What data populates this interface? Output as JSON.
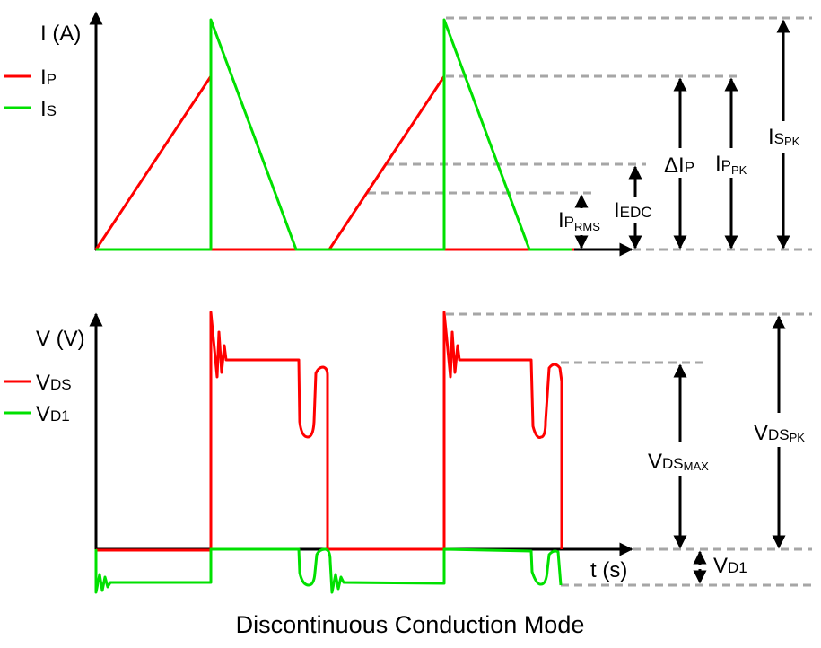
{
  "title": "Discontinuous Conduction Mode",
  "colors": {
    "primary": "#ff0000",
    "secondary": "#00e000",
    "axis": "#000000",
    "guide": "#a6a6a6"
  },
  "current_plot": {
    "y_axis_label": "I (A)",
    "legend": [
      {
        "main": "I",
        "sub": "P",
        "color": "#ff0000"
      },
      {
        "main": "I",
        "sub": "S",
        "color": "#00e000"
      }
    ],
    "annotations": {
      "iprms": {
        "main": "I",
        "sub": "P",
        "subsub": "RMS"
      },
      "iedc": {
        "main": "I",
        "sub": "EDC"
      },
      "delta_ip": {
        "main": "ΔI",
        "sub": "P"
      },
      "ippk": {
        "main": "I",
        "sub": "P",
        "subsub": "PK"
      },
      "ispk": {
        "main": "I",
        "sub": "S",
        "subsub": "PK"
      }
    }
  },
  "voltage_plot": {
    "y_axis_label": "V (V)",
    "x_axis_label": "t (s)",
    "legend": [
      {
        "main": "V",
        "sub": "DS",
        "color": "#ff0000"
      },
      {
        "main": "V",
        "sub": "D1",
        "color": "#00e000"
      }
    ],
    "annotations": {
      "vdsmax": {
        "main": "V",
        "sub": "DS",
        "subsub": "MAX"
      },
      "vdspk": {
        "main": "V",
        "sub": "DS",
        "subsub": "PK"
      },
      "vd1": {
        "main": "V",
        "sub": "D1"
      }
    }
  }
}
